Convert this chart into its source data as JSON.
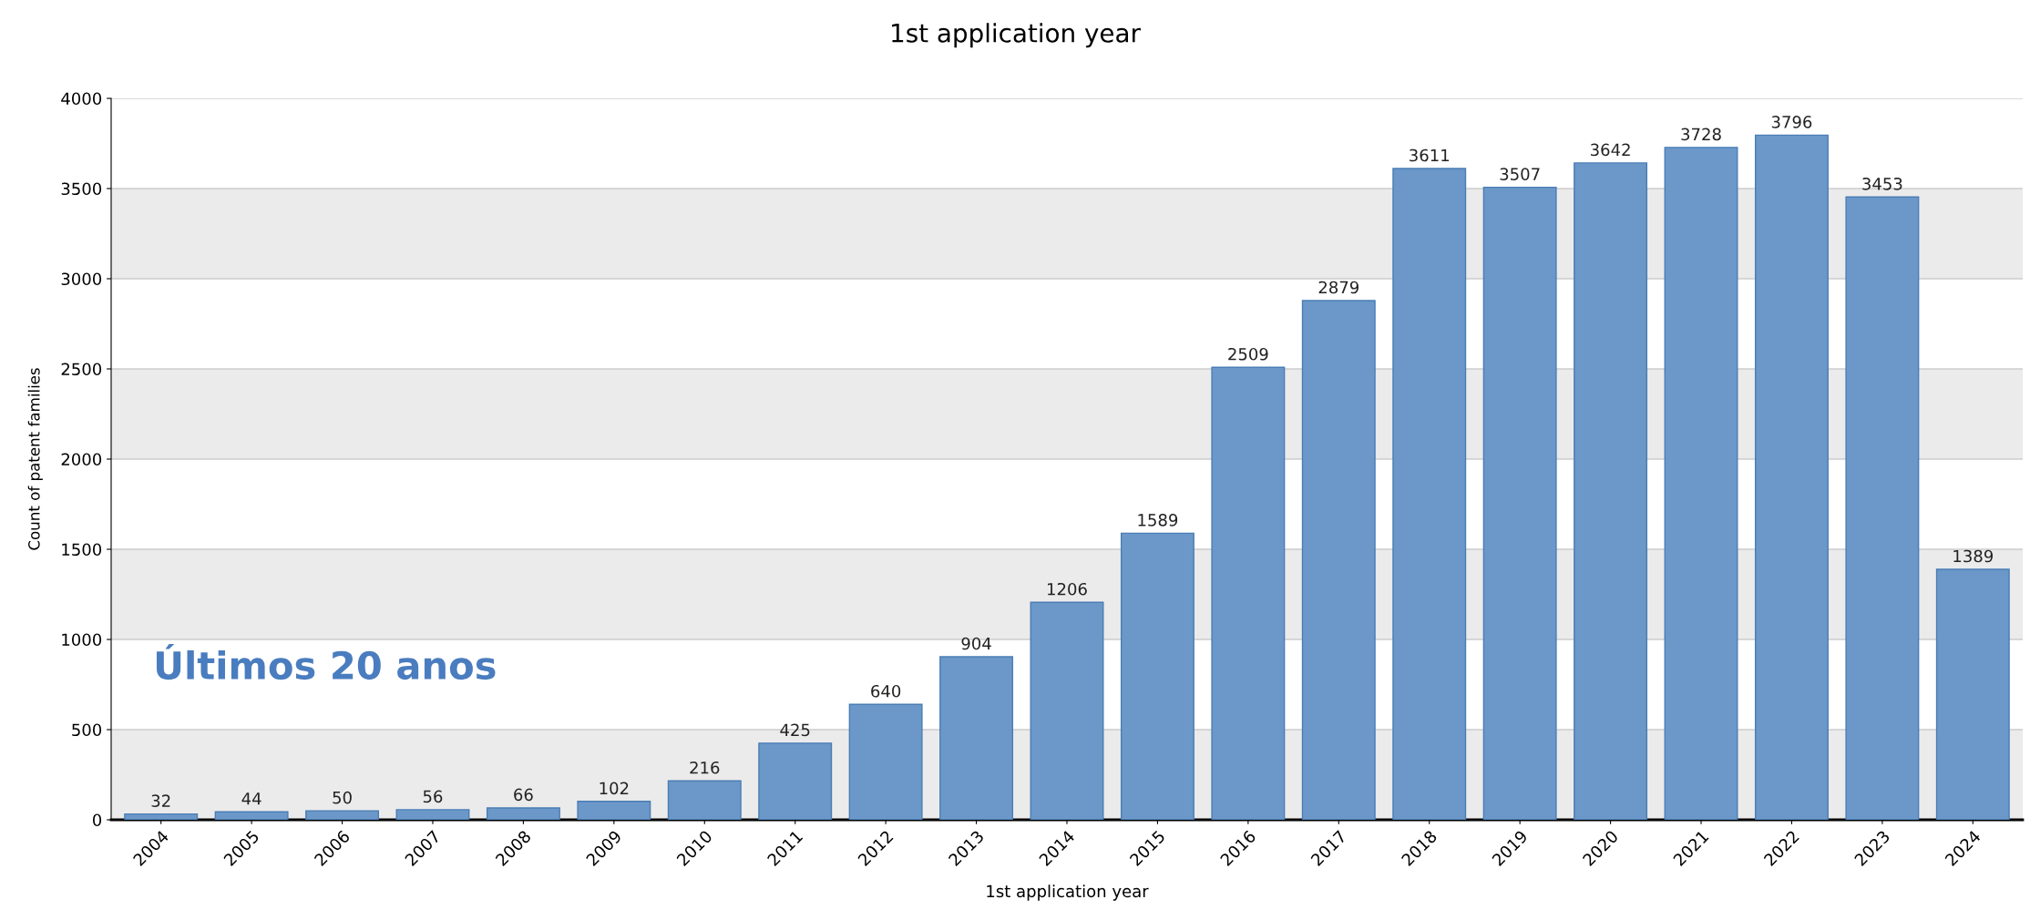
{
  "chart_data": {
    "type": "bar",
    "title": "1st application year",
    "xlabel": "1st application year",
    "ylabel": "Count of patent families",
    "categories": [
      "2004",
      "2005",
      "2006",
      "2007",
      "2008",
      "2009",
      "2010",
      "2011",
      "2012",
      "2013",
      "2014",
      "2015",
      "2016",
      "2017",
      "2018",
      "2019",
      "2020",
      "2021",
      "2022",
      "2023",
      "2024"
    ],
    "values": [
      32,
      44,
      50,
      56,
      66,
      102,
      216,
      425,
      640,
      904,
      1206,
      1589,
      2509,
      2879,
      3611,
      3507,
      3642,
      3728,
      3796,
      3453,
      1389
    ],
    "color": "#6b98c8",
    "ylim": [
      0,
      4000
    ],
    "yticks": [
      0,
      500,
      1000,
      1500,
      2000,
      2500,
      3000,
      3500,
      4000
    ],
    "grid": "y",
    "data_labels": true,
    "legend": false,
    "bands": [
      {
        "axis": "y",
        "from": 0,
        "to": 500,
        "color": "#ebebeb"
      },
      {
        "axis": "y",
        "from": 1000,
        "to": 1500,
        "color": "#ebebeb"
      },
      {
        "axis": "y",
        "from": 2000,
        "to": 2500,
        "color": "#ebebeb"
      },
      {
        "axis": "y",
        "from": 3000,
        "to": 3500,
        "color": "#ebebeb"
      }
    ],
    "annotations": [
      "Últimos 20 anos"
    ]
  }
}
